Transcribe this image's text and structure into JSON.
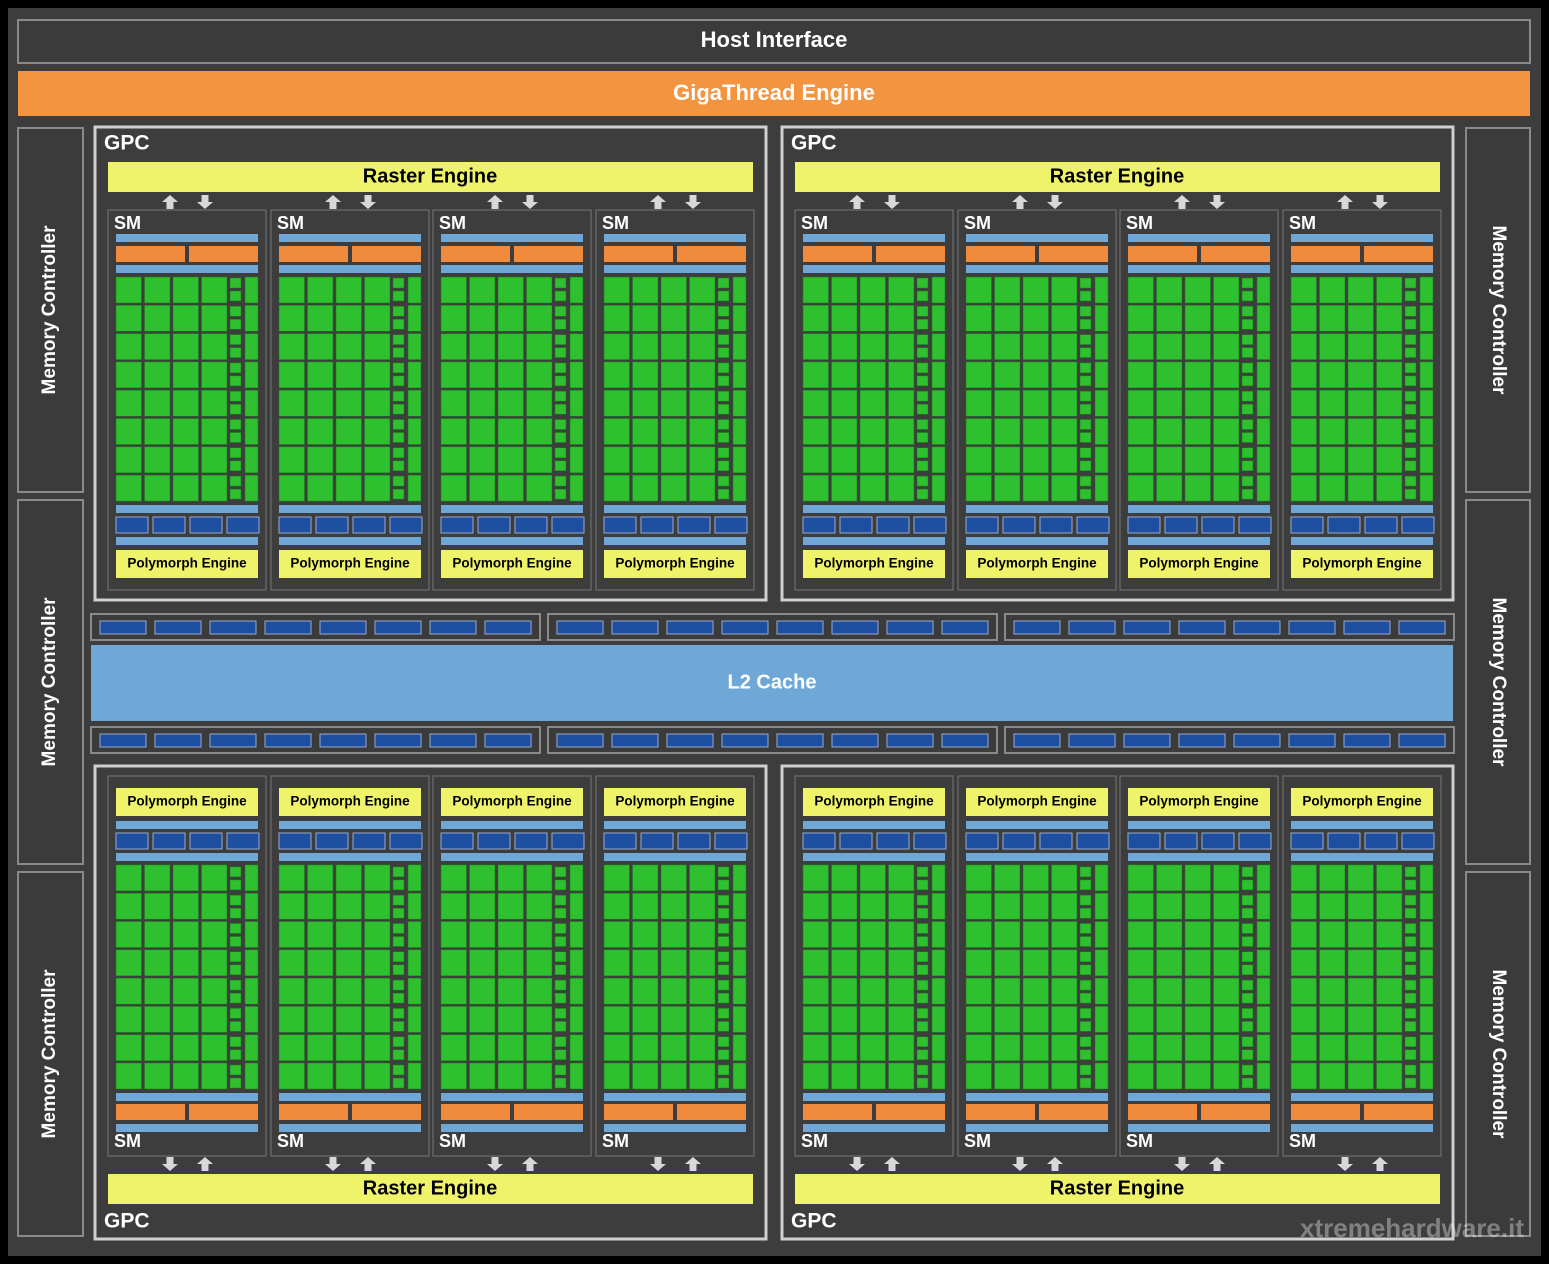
{
  "host_interface": "Host Interface",
  "gigathread_engine": "GigaThread Engine",
  "memory_controllers": [
    "Memory Controller",
    "Memory Controller",
    "Memory Controller",
    "Memory Controller",
    "Memory Controller",
    "Memory Controller"
  ],
  "l2_cache": "L2 Cache",
  "gpcs": [
    {
      "label": "GPC",
      "raster_engine": "Raster Engine",
      "sms": [
        {
          "label": "SM",
          "polymorph_engine": "Polymorph Engine"
        },
        {
          "label": "SM",
          "polymorph_engine": "Polymorph Engine"
        },
        {
          "label": "SM",
          "polymorph_engine": "Polymorph Engine"
        },
        {
          "label": "SM",
          "polymorph_engine": "Polymorph Engine"
        }
      ]
    },
    {
      "label": "GPC",
      "raster_engine": "Raster Engine",
      "sms": [
        {
          "label": "SM",
          "polymorph_engine": "Polymorph Engine"
        },
        {
          "label": "SM",
          "polymorph_engine": "Polymorph Engine"
        },
        {
          "label": "SM",
          "polymorph_engine": "Polymorph Engine"
        },
        {
          "label": "SM",
          "polymorph_engine": "Polymorph Engine"
        }
      ]
    },
    {
      "label": "GPC",
      "raster_engine": "Raster Engine",
      "sms": [
        {
          "label": "SM",
          "polymorph_engine": "Polymorph Engine"
        },
        {
          "label": "SM",
          "polymorph_engine": "Polymorph Engine"
        },
        {
          "label": "SM",
          "polymorph_engine": "Polymorph Engine"
        },
        {
          "label": "SM",
          "polymorph_engine": "Polymorph Engine"
        }
      ]
    },
    {
      "label": "GPC",
      "raster_engine": "Raster Engine",
      "sms": [
        {
          "label": "SM",
          "polymorph_engine": "Polymorph Engine"
        },
        {
          "label": "SM",
          "polymorph_engine": "Polymorph Engine"
        },
        {
          "label": "SM",
          "polymorph_engine": "Polymorph Engine"
        },
        {
          "label": "SM",
          "polymorph_engine": "Polymorph Engine"
        }
      ]
    }
  ],
  "watermark": "xtremehardware.it"
}
